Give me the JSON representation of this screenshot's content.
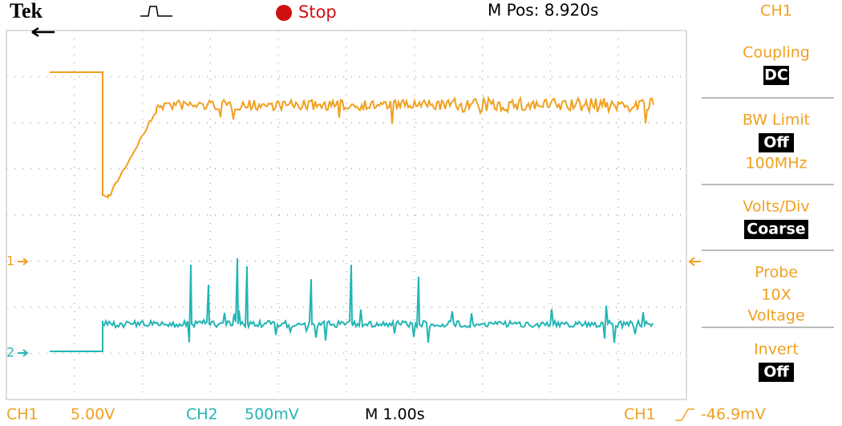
{
  "header": {
    "brand": "Tek",
    "state": "Stop",
    "position": "M Pos: 8.920s",
    "channel": "CH1"
  },
  "menu": [
    {
      "label": "Coupling",
      "options": [
        "DC"
      ]
    },
    {
      "label": "BW Limit",
      "options": [
        "Off",
        "100MHz"
      ]
    },
    {
      "label": "Volts/Div",
      "options": [
        "Coarse"
      ]
    },
    {
      "label": "Probe",
      "options": [
        "10X",
        "Voltage"
      ]
    },
    {
      "label": "Invert",
      "options": [
        "Off"
      ]
    }
  ],
  "markers": [
    "1",
    "2"
  ],
  "footer": {
    "ch1": "CH1",
    "ch1_scale": "5.00V",
    "ch2": "CH2",
    "ch2_scale": "500mV",
    "time": "M 1.00s",
    "trigger_source": "CH1",
    "trigger_level": "-46.9mV"
  }
}
